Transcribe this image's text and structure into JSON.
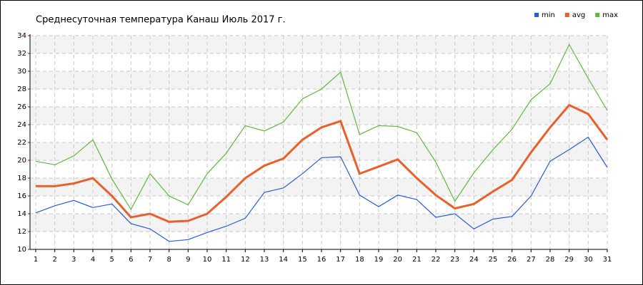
{
  "chart_data": {
    "type": "line",
    "title": "Среднесуточная температура Канаш  Июль 2017 г.",
    "x": [
      1,
      2,
      3,
      4,
      5,
      6,
      7,
      8,
      9,
      10,
      11,
      12,
      13,
      14,
      15,
      16,
      17,
      18,
      19,
      20,
      21,
      22,
      23,
      24,
      25,
      26,
      27,
      28,
      29,
      30,
      31
    ],
    "xlim": [
      1,
      31
    ],
    "xticks": [
      1,
      2,
      3,
      4,
      5,
      6,
      7,
      8,
      9,
      10,
      11,
      12,
      13,
      14,
      15,
      16,
      17,
      18,
      19,
      20,
      21,
      22,
      23,
      24,
      25,
      26,
      27,
      28,
      29,
      30,
      31
    ],
    "ylim": [
      10,
      34
    ],
    "yticks": [
      10,
      12,
      14,
      16,
      18,
      20,
      22,
      24,
      26,
      28,
      30,
      32,
      34
    ],
    "grid": true,
    "legend": "top-right",
    "series": [
      {
        "name": "min",
        "color": "#2a5bd7",
        "values": [
          14.1,
          14.9,
          15.5,
          14.7,
          15.1,
          12.9,
          12.3,
          10.9,
          11.1,
          11.9,
          12.6,
          13.5,
          16.4,
          16.9,
          18.5,
          20.3,
          20.4,
          16.1,
          14.8,
          16.1,
          15.6,
          13.6,
          14.0,
          12.3,
          13.4,
          13.7,
          16.0,
          19.9,
          21.2,
          22.6,
          19.2
        ]
      },
      {
        "name": "avg",
        "color": "#e8602c",
        "values": [
          17.1,
          17.1,
          17.4,
          18.0,
          16.0,
          13.6,
          14.0,
          13.1,
          13.2,
          14.0,
          15.9,
          18.0,
          19.4,
          20.2,
          22.3,
          23.7,
          24.4,
          18.5,
          19.3,
          20.1,
          18.0,
          16.1,
          14.6,
          15.1,
          16.5,
          17.8,
          20.9,
          23.7,
          26.2,
          25.2,
          22.3
        ]
      },
      {
        "name": "max",
        "color": "#5fb83f",
        "values": [
          19.9,
          19.5,
          20.5,
          22.3,
          17.9,
          14.5,
          18.5,
          16.0,
          15.0,
          18.5,
          20.8,
          23.9,
          23.3,
          24.3,
          26.9,
          28.0,
          29.9,
          22.9,
          23.9,
          23.8,
          23.1,
          19.8,
          15.4,
          18.6,
          21.2,
          23.5,
          26.8,
          28.6,
          33.0,
          29.2,
          25.6
        ]
      }
    ]
  }
}
